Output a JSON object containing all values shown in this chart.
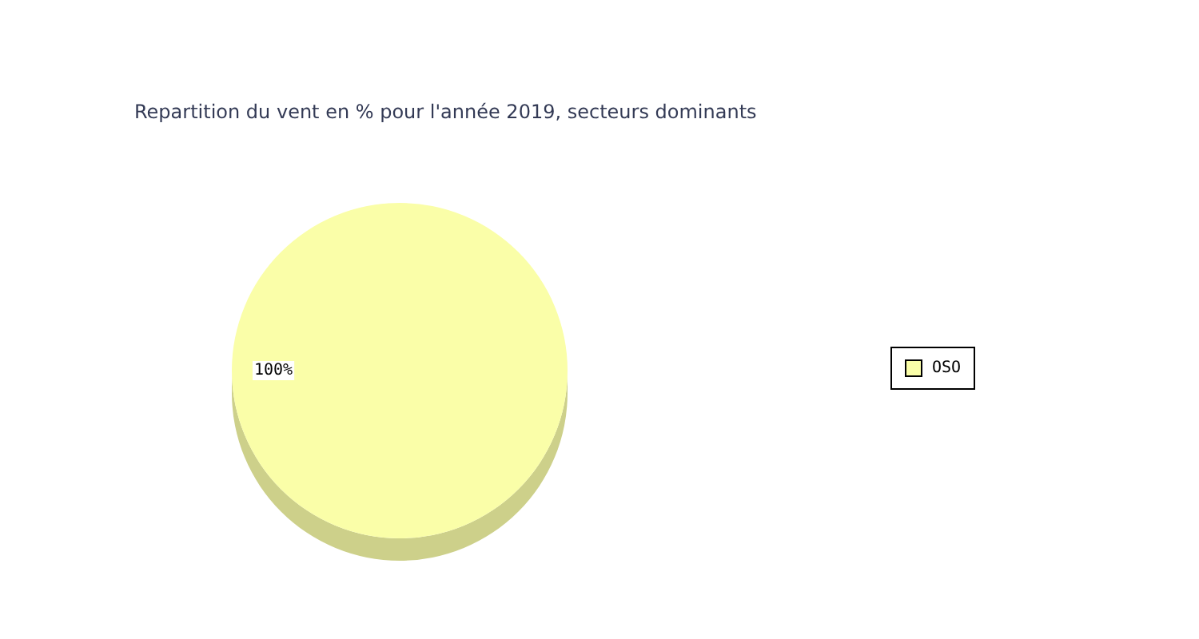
{
  "chart_data": {
    "type": "pie",
    "title": "Repartition du vent en % pour l'année 2019, secteurs dominants",
    "categories": [
      "OSO"
    ],
    "values": [
      100
    ],
    "colors": [
      "#fafea8"
    ],
    "value_labels": [
      "100%"
    ],
    "legend": "right"
  }
}
